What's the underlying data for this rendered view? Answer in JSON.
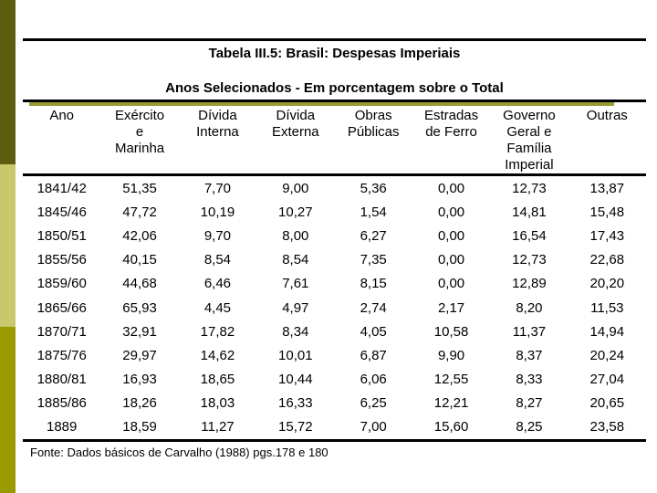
{
  "slide": {
    "title": "Tabela III.5: Brasil: Despesas Imperiais",
    "subtitle": "Anos Selecionados - Em porcentagem sobre o Total",
    "source_note": "Fonte: Dados básicos de Carvalho (1988) pgs.178 e 180"
  },
  "table": {
    "columns": [
      {
        "label": "Ano",
        "lines": [
          "Ano"
        ]
      },
      {
        "label": "Exército e Marinha",
        "lines": [
          "Exército",
          "e",
          "Marinha"
        ]
      },
      {
        "label": "Dívida Interna",
        "lines": [
          "Dívida",
          "Interna"
        ]
      },
      {
        "label": "Dívida Externa",
        "lines": [
          "Dívida",
          "Externa"
        ]
      },
      {
        "label": "Obras Públicas",
        "lines": [
          "Obras",
          "Públicas"
        ]
      },
      {
        "label": "Estradas de Ferro",
        "lines": [
          "Estradas",
          "de Ferro"
        ]
      },
      {
        "label": "Governo Geral e Família Imperial",
        "lines": [
          "Governo",
          "Geral e",
          "Família",
          "Imperial"
        ]
      },
      {
        "label": "Outras",
        "lines": [
          "Outras"
        ]
      }
    ],
    "rows": [
      [
        "1841/42",
        "51,35",
        "7,70",
        "9,00",
        "5,36",
        "0,00",
        "12,73",
        "13,87"
      ],
      [
        "1845/46",
        "47,72",
        "10,19",
        "10,27",
        "1,54",
        "0,00",
        "14,81",
        "15,48"
      ],
      [
        "1850/51",
        "42,06",
        "9,70",
        "8,00",
        "6,27",
        "0,00",
        "16,54",
        "17,43"
      ],
      [
        "1855/56",
        "40,15",
        "8,54",
        "8,54",
        "7,35",
        "0,00",
        "12,73",
        "22,68"
      ],
      [
        "1859/60",
        "44,68",
        "6,46",
        "7,61",
        "8,15",
        "0,00",
        "12,89",
        "20,20"
      ],
      [
        "1865/66",
        "65,93",
        "4,45",
        "4,97",
        "2,74",
        "2,17",
        "8,20",
        "11,53"
      ],
      [
        "1870/71",
        "32,91",
        "17,82",
        "8,34",
        "4,05",
        "10,58",
        "11,37",
        "14,94"
      ],
      [
        "1875/76",
        "29,97",
        "14,62",
        "10,01",
        "6,87",
        "9,90",
        "8,37",
        "20,24"
      ],
      [
        "1880/81",
        "16,93",
        "18,65",
        "10,44",
        "6,06",
        "12,55",
        "8,33",
        "27,04"
      ],
      [
        "1885/86",
        "18,26",
        "18,03",
        "16,33",
        "6,25",
        "12,21",
        "8,27",
        "20,65"
      ],
      [
        "1889",
        "18,59",
        "11,27",
        "15,72",
        "7,00",
        "15,60",
        "8,25",
        "23,58"
      ]
    ]
  },
  "colors": {
    "rule_black": "#000000",
    "accent_underline_olive": "#9b9b33",
    "sidebar_dark_olive": "#5d5d0f",
    "sidebar_light_olive": "#c9c96b",
    "sidebar_medium_olive": "#9a9a00",
    "background": "#ffffff",
    "text": "#000000"
  }
}
